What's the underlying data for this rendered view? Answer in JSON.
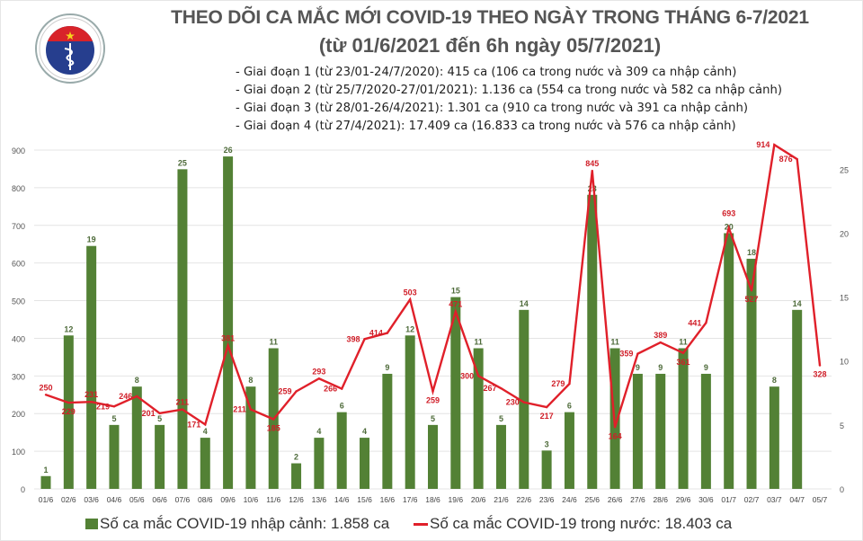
{
  "logo": {
    "top_text": "BỘ Y TẾ",
    "bottom_text": "MINISTRY OF HEALTH"
  },
  "header": {
    "title": "THEO DÕI CA MẮC MỚI COVID-19 THEO NGÀY TRONG THÁNG 6-7/2021",
    "subtitle": "(từ 01/6/2021 đến 6h ngày 05/7/2021)",
    "stages": [
      "- Giai đoạn 1 (từ 23/01-24/7/2020): 415 ca (106 ca trong nước và 309 ca nhập cảnh)",
      "- Giai đoạn 2 (từ 25/7/2020-27/01/2021): 1.136 ca (554 ca trong nước và 582 ca nhập cảnh)",
      "- Giai đoạn 3 (từ 28/01-26/4/2021): 1.301 ca (910 ca trong nước và 391 ca nhập cảnh)",
      "- Giai đoạn 4 (từ 27/4/2021): 17.409 ca (16.833 ca trong nước và 576 ca nhập cảnh)"
    ]
  },
  "chart_data": {
    "type": "bar+line",
    "title": "THEO DÕI CA MẮC MỚI COVID-19 THEO NGÀY TRONG THÁNG 6-7/2021",
    "categories": [
      "01/6",
      "02/6",
      "03/6",
      "04/6",
      "05/6",
      "06/6",
      "07/6",
      "08/6",
      "09/6",
      "10/6",
      "11/6",
      "12/6",
      "13/6",
      "14/6",
      "15/6",
      "16/6",
      "17/6",
      "18/6",
      "19/6",
      "20/6",
      "21/6",
      "22/6",
      "23/6",
      "24/6",
      "25/6",
      "26/6",
      "27/6",
      "28/6",
      "29/6",
      "30/6",
      "01/7",
      "02/7",
      "03/7",
      "04/7",
      "05/7"
    ],
    "series": [
      {
        "name": "Số ca mắc COVID-19 nhập cảnh: 1.858 ca",
        "type": "bar",
        "axis": "right",
        "color": "#538135",
        "values": [
          1,
          12,
          19,
          5,
          8,
          5,
          25,
          4,
          26,
          8,
          11,
          2,
          4,
          6,
          4,
          9,
          12,
          5,
          15,
          11,
          5,
          14,
          3,
          6,
          23,
          11,
          9,
          9,
          11,
          9,
          20,
          18,
          8,
          14,
          null
        ]
      },
      {
        "name": "Số ca mắc COVID-19 trong nước: 18.403 ca",
        "type": "line",
        "axis": "left",
        "color": "#e0202a",
        "values": [
          250,
          229,
          231,
          219,
          246,
          201,
          211,
          171,
          381,
          211,
          185,
          259,
          293,
          266,
          398,
          414,
          503,
          259,
          471,
          300,
          267,
          230,
          217,
          279,
          845,
          164,
          359,
          389,
          361,
          441,
          693,
          527,
          914,
          876,
          328
        ]
      }
    ],
    "y_left": {
      "ylim": [
        0,
        900
      ],
      "ticks": [
        0,
        100,
        200,
        300,
        400,
        500,
        600,
        700,
        800,
        900
      ]
    },
    "y_right": {
      "ylim": [
        0,
        26.5
      ],
      "ticks": [
        0,
        5,
        10,
        15,
        20,
        25
      ]
    },
    "grid": true,
    "legend": "bottom"
  }
}
